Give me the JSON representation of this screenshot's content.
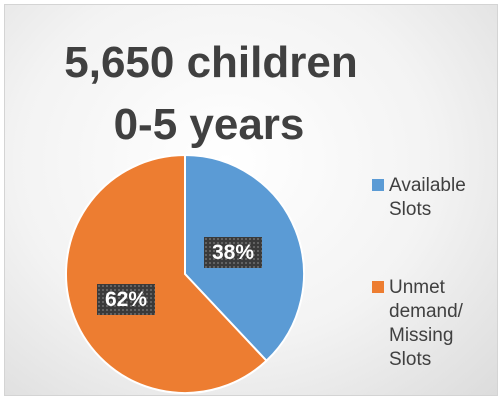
{
  "chart_data": {
    "type": "pie",
    "title_lines": [
      "5,650 children",
      "0-5 years"
    ],
    "slices": [
      {
        "name": "Available Slots",
        "value": 38,
        "label": "38%",
        "color": "#5b9bd5"
      },
      {
        "name": "Unmet demand/ Missing Slots",
        "value": 62,
        "label": "62%",
        "color": "#ed7d31"
      }
    ],
    "legend": {
      "position": "right",
      "items": [
        {
          "lines": [
            "Available",
            "Slots"
          ],
          "color": "#5b9bd5"
        },
        {
          "lines": [
            "Unmet",
            "demand/",
            "Missing",
            "Slots"
          ],
          "color": "#ed7d31"
        }
      ]
    }
  }
}
